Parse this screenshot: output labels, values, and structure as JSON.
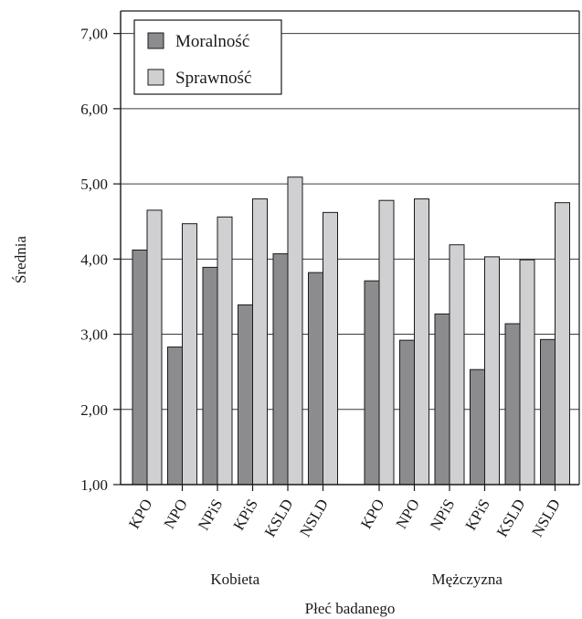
{
  "chart_data": {
    "type": "bar",
    "title": "",
    "xlabel": "Płeć badanego",
    "ylabel": "Średnia",
    "ylim": [
      1,
      7.3
    ],
    "yticks": [
      "1,00",
      "2,00",
      "3,00",
      "4,00",
      "5,00",
      "6,00",
      "7,00"
    ],
    "ytick_values": [
      1,
      2,
      3,
      4,
      5,
      6,
      7
    ],
    "grid": true,
    "legend_position": "top-left",
    "groups": [
      {
        "name": "Kobieta",
        "categories": [
          "KPO",
          "NPO",
          "NPiS",
          "KPiS",
          "KSLD",
          "NSLD"
        ]
      },
      {
        "name": "Mężczyzna",
        "categories": [
          "KPO",
          "NPO",
          "NPiS",
          "KPiS",
          "KSLD",
          "NSLD"
        ]
      }
    ],
    "series": [
      {
        "name": "Moralność",
        "color": "#8c8c8e",
        "values": [
          4.12,
          2.83,
          3.89,
          3.39,
          4.07,
          3.82,
          3.71,
          2.92,
          3.27,
          2.53,
          3.14,
          2.93
        ]
      },
      {
        "name": "Sprawność",
        "color": "#d0d0d2",
        "values": [
          4.65,
          4.47,
          4.56,
          4.8,
          5.09,
          4.62,
          4.78,
          4.8,
          4.19,
          4.03,
          3.99,
          4.75
        ]
      }
    ]
  }
}
